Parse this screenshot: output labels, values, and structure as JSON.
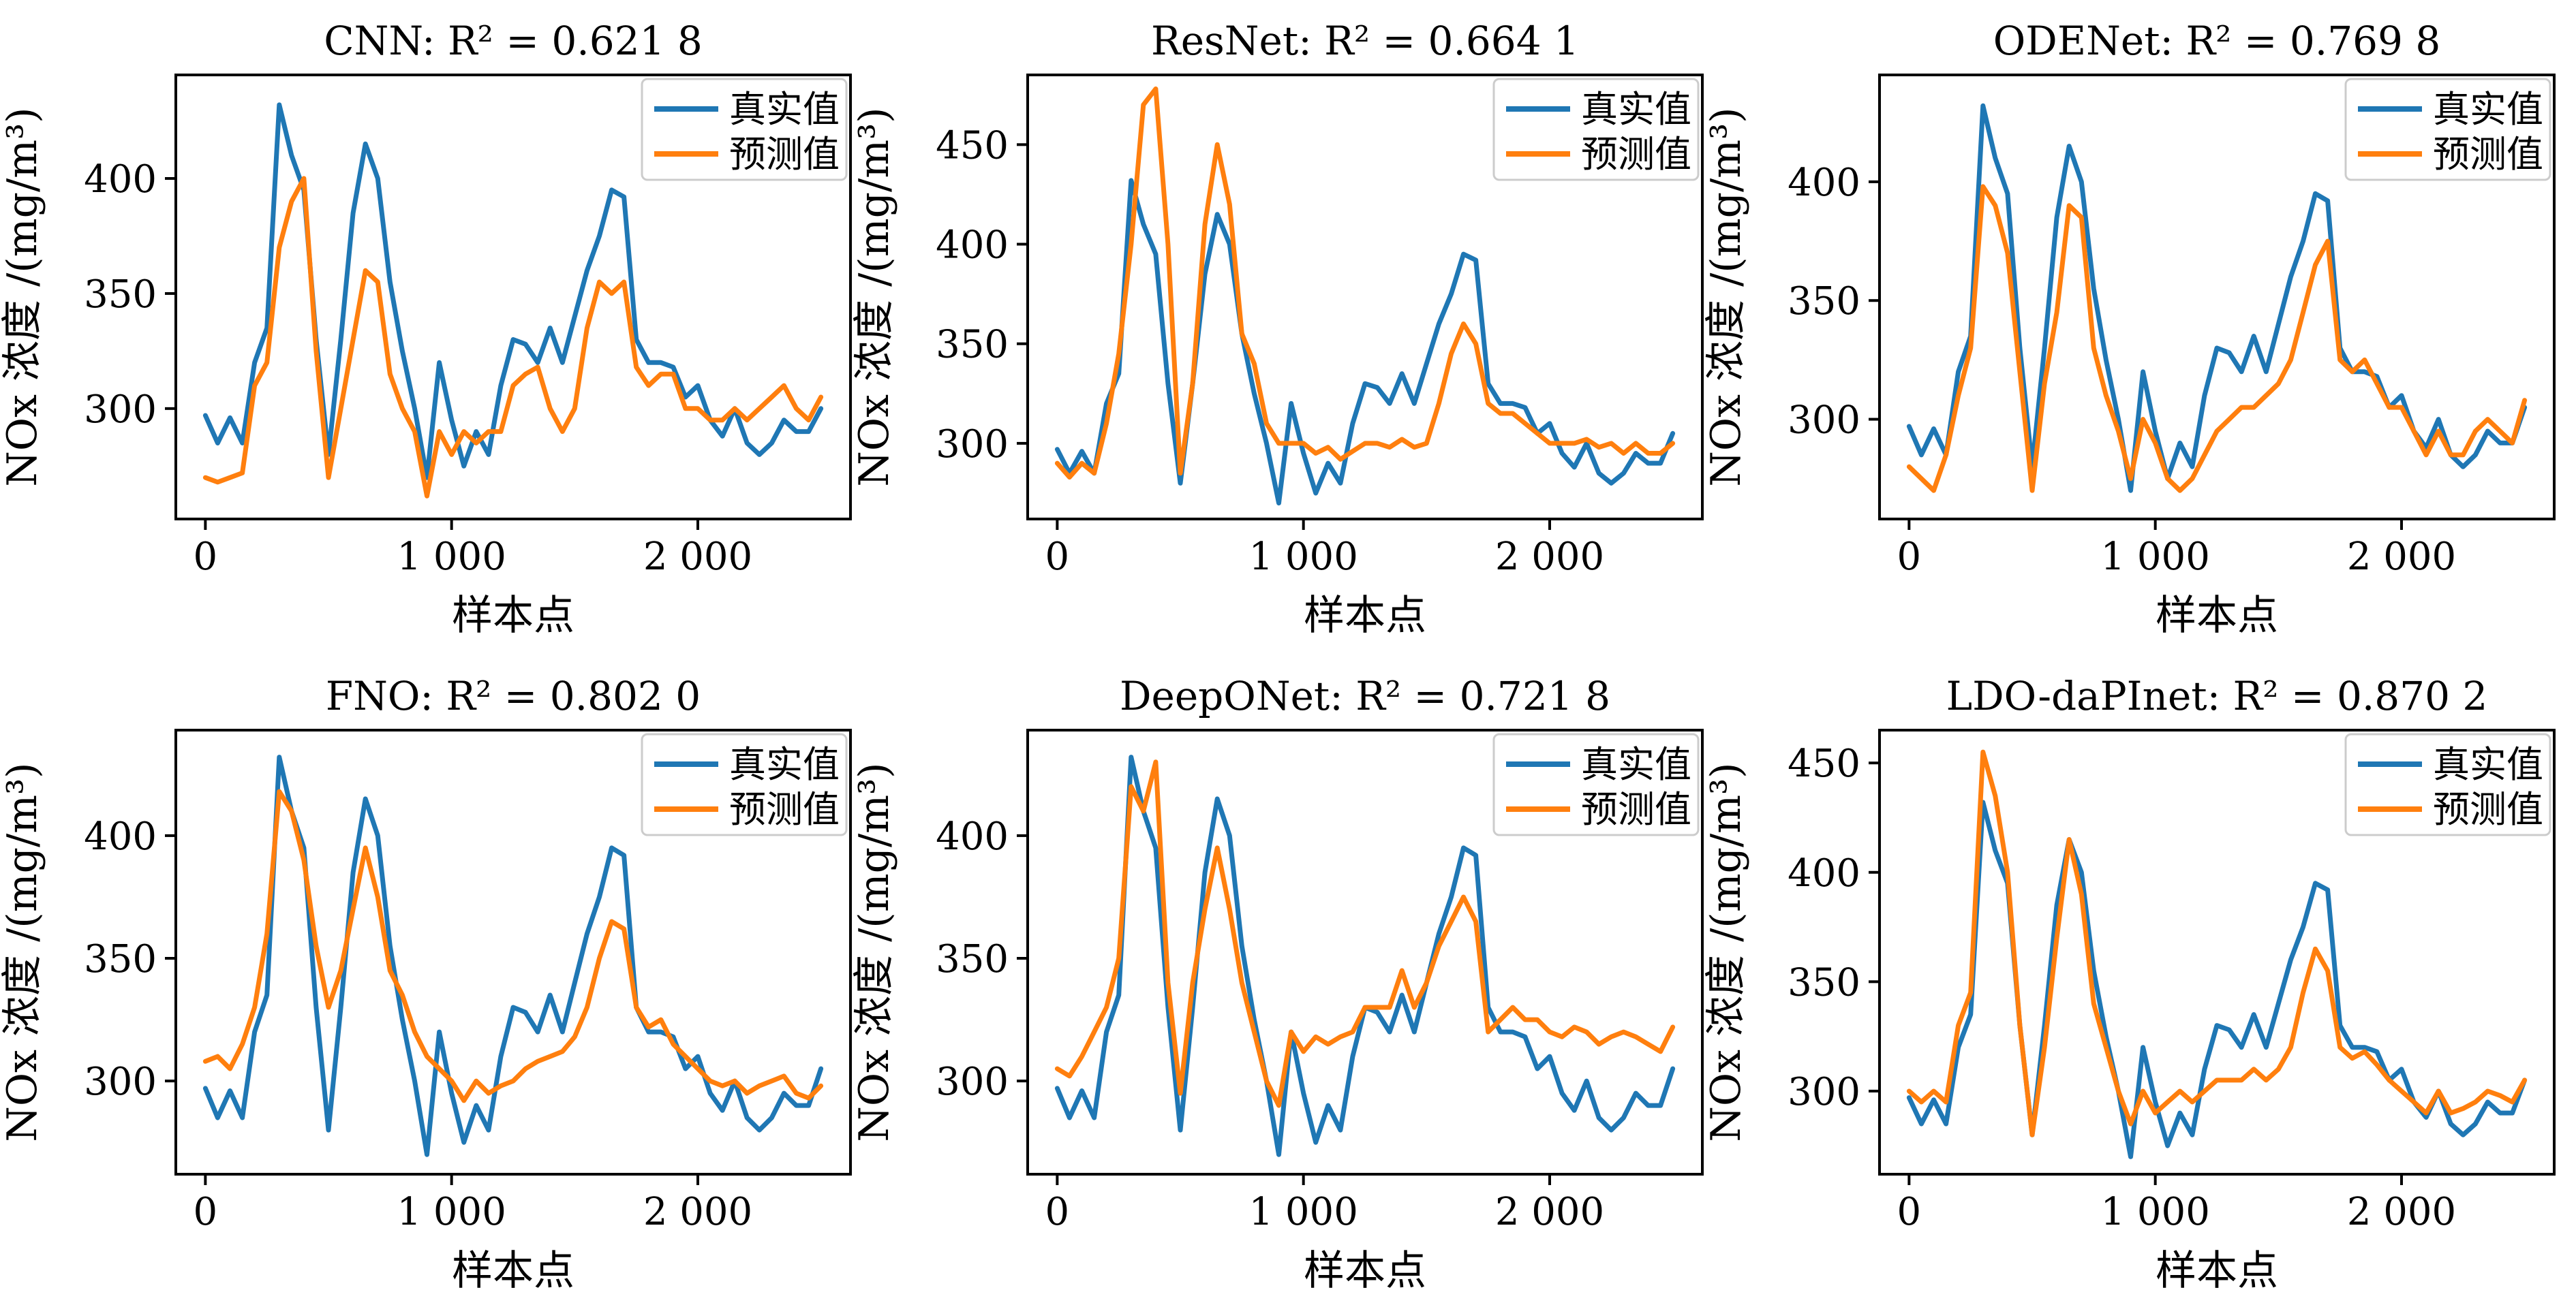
{
  "figure": {
    "legend_placement": "top-right",
    "grid": false
  },
  "series_colors": {
    "真实值": "#1f77b4",
    "预测值": "#ff7f0e"
  },
  "chart_data": [
    {
      "type": "line",
      "title": "CNN: R² = 0.621 8",
      "xlabel": "样本点",
      "ylabel": "NOx 浓度 /(mg/m³)",
      "xlim": [
        -120,
        2620
      ],
      "ylim": [
        252,
        445
      ],
      "x_ticks": [
        0,
        1000,
        2000
      ],
      "x_tick_labels": [
        "0",
        "1 000",
        "2 000"
      ],
      "y_ticks": [
        300,
        350,
        400
      ],
      "y_tick_labels": [
        "300",
        "350",
        "400"
      ],
      "legend": [
        "真实值",
        "预测值"
      ],
      "x": [
        0,
        50,
        100,
        150,
        200,
        250,
        300,
        350,
        400,
        450,
        500,
        550,
        600,
        650,
        700,
        750,
        800,
        850,
        900,
        950,
        1000,
        1050,
        1100,
        1150,
        1200,
        1250,
        1300,
        1350,
        1400,
        1450,
        1500,
        1550,
        1600,
        1650,
        1700,
        1750,
        1800,
        1850,
        1900,
        1950,
        2000,
        2050,
        2100,
        2150,
        2200,
        2250,
        2300,
        2350,
        2400,
        2450,
        2500
      ],
      "series": [
        {
          "name": "真实值",
          "values": [
            297,
            285,
            296,
            285,
            320,
            335,
            432,
            410,
            395,
            330,
            280,
            330,
            385,
            415,
            400,
            355,
            325,
            300,
            270,
            320,
            295,
            275,
            290,
            280,
            310,
            330,
            328,
            320,
            335,
            320,
            340,
            360,
            375,
            395,
            392,
            330,
            320,
            320,
            318,
            305,
            310,
            295,
            288,
            300,
            285,
            280,
            285,
            295,
            290,
            290,
            300
          ]
        },
        {
          "name": "预测值",
          "values": [
            270,
            268,
            270,
            272,
            310,
            320,
            370,
            390,
            400,
            325,
            270,
            300,
            330,
            360,
            355,
            315,
            300,
            290,
            262,
            290,
            280,
            290,
            285,
            290,
            290,
            310,
            315,
            318,
            300,
            290,
            300,
            335,
            355,
            350,
            355,
            318,
            310,
            315,
            315,
            300,
            300,
            295,
            295,
            300,
            295,
            300,
            305,
            310,
            300,
            295,
            305
          ]
        }
      ]
    },
    {
      "type": "line",
      "title": "ResNet: R² = 0.664 1",
      "xlabel": "样本点",
      "ylabel": "NOx 浓度 /(mg/m³)",
      "xlim": [
        -120,
        2620
      ],
      "ylim": [
        262,
        485
      ],
      "x_ticks": [
        0,
        1000,
        2000
      ],
      "x_tick_labels": [
        "0",
        "1 000",
        "2 000"
      ],
      "y_ticks": [
        300,
        350,
        400,
        450
      ],
      "y_tick_labels": [
        "300",
        "350",
        "400",
        "450"
      ],
      "legend": [
        "真实值",
        "预测值"
      ],
      "x": [
        0,
        50,
        100,
        150,
        200,
        250,
        300,
        350,
        400,
        450,
        500,
        550,
        600,
        650,
        700,
        750,
        800,
        850,
        900,
        950,
        1000,
        1050,
        1100,
        1150,
        1200,
        1250,
        1300,
        1350,
        1400,
        1450,
        1500,
        1550,
        1600,
        1650,
        1700,
        1750,
        1800,
        1850,
        1900,
        1950,
        2000,
        2050,
        2100,
        2150,
        2200,
        2250,
        2300,
        2350,
        2400,
        2450,
        2500
      ],
      "series": [
        {
          "name": "真实值",
          "values": [
            297,
            285,
            296,
            285,
            320,
            335,
            432,
            410,
            395,
            330,
            280,
            330,
            385,
            415,
            400,
            355,
            325,
            300,
            270,
            320,
            295,
            275,
            290,
            280,
            310,
            330,
            328,
            320,
            335,
            320,
            340,
            360,
            375,
            395,
            392,
            330,
            320,
            320,
            318,
            305,
            310,
            295,
            288,
            300,
            285,
            280,
            285,
            295,
            290,
            290,
            305
          ]
        },
        {
          "name": "预测值",
          "values": [
            290,
            283,
            290,
            285,
            310,
            345,
            400,
            470,
            478,
            400,
            285,
            330,
            410,
            450,
            420,
            355,
            340,
            310,
            300,
            300,
            300,
            295,
            298,
            292,
            296,
            300,
            300,
            298,
            302,
            298,
            300,
            320,
            345,
            360,
            350,
            320,
            315,
            315,
            310,
            305,
            300,
            300,
            300,
            302,
            298,
            300,
            295,
            300,
            295,
            295,
            300
          ]
        }
      ]
    },
    {
      "type": "line",
      "title": "ODENet: R² = 0.769 8",
      "xlabel": "样本点",
      "ylabel": "NOx 浓度 /(mg/m³)",
      "xlim": [
        -120,
        2620
      ],
      "ylim": [
        258,
        445
      ],
      "x_ticks": [
        0,
        1000,
        2000
      ],
      "x_tick_labels": [
        "0",
        "1 000",
        "2 000"
      ],
      "y_ticks": [
        300,
        350,
        400
      ],
      "y_tick_labels": [
        "300",
        "350",
        "400"
      ],
      "legend": [
        "真实值",
        "预测值"
      ],
      "x": [
        0,
        50,
        100,
        150,
        200,
        250,
        300,
        350,
        400,
        450,
        500,
        550,
        600,
        650,
        700,
        750,
        800,
        850,
        900,
        950,
        1000,
        1050,
        1100,
        1150,
        1200,
        1250,
        1300,
        1350,
        1400,
        1450,
        1500,
        1550,
        1600,
        1650,
        1700,
        1750,
        1800,
        1850,
        1900,
        1950,
        2000,
        2050,
        2100,
        2150,
        2200,
        2250,
        2300,
        2350,
        2400,
        2450,
        2500
      ],
      "series": [
        {
          "name": "真实值",
          "values": [
            297,
            285,
            296,
            285,
            320,
            335,
            432,
            410,
            395,
            330,
            280,
            330,
            385,
            415,
            400,
            355,
            325,
            300,
            270,
            320,
            295,
            275,
            290,
            280,
            310,
            330,
            328,
            320,
            335,
            320,
            340,
            360,
            375,
            395,
            392,
            330,
            320,
            320,
            318,
            305,
            310,
            295,
            288,
            300,
            285,
            280,
            285,
            295,
            290,
            290,
            305
          ]
        },
        {
          "name": "预测值",
          "values": [
            280,
            275,
            270,
            285,
            310,
            330,
            398,
            390,
            370,
            320,
            270,
            315,
            345,
            390,
            385,
            330,
            310,
            295,
            275,
            300,
            290,
            275,
            270,
            275,
            285,
            295,
            300,
            305,
            305,
            310,
            315,
            325,
            345,
            365,
            375,
            325,
            320,
            325,
            315,
            305,
            305,
            295,
            285,
            295,
            285,
            285,
            295,
            300,
            295,
            290,
            308
          ]
        }
      ]
    },
    {
      "type": "line",
      "title": "FNO: R² = 0.802 0",
      "xlabel": "样本点",
      "ylabel": "NOx 浓度 /(mg/m³)",
      "xlim": [
        -120,
        2620
      ],
      "ylim": [
        262,
        443
      ],
      "x_ticks": [
        0,
        1000,
        2000
      ],
      "x_tick_labels": [
        "0",
        "1 000",
        "2 000"
      ],
      "y_ticks": [
        300,
        350,
        400
      ],
      "y_tick_labels": [
        "300",
        "350",
        "400"
      ],
      "legend": [
        "真实值",
        "预测值"
      ],
      "x": [
        0,
        50,
        100,
        150,
        200,
        250,
        300,
        350,
        400,
        450,
        500,
        550,
        600,
        650,
        700,
        750,
        800,
        850,
        900,
        950,
        1000,
        1050,
        1100,
        1150,
        1200,
        1250,
        1300,
        1350,
        1400,
        1450,
        1500,
        1550,
        1600,
        1650,
        1700,
        1750,
        1800,
        1850,
        1900,
        1950,
        2000,
        2050,
        2100,
        2150,
        2200,
        2250,
        2300,
        2350,
        2400,
        2450,
        2500
      ],
      "series": [
        {
          "name": "真实值",
          "values": [
            297,
            285,
            296,
            285,
            320,
            335,
            432,
            410,
            395,
            330,
            280,
            330,
            385,
            415,
            400,
            355,
            325,
            300,
            270,
            320,
            295,
            275,
            290,
            280,
            310,
            330,
            328,
            320,
            335,
            320,
            340,
            360,
            375,
            395,
            392,
            330,
            320,
            320,
            318,
            305,
            310,
            295,
            288,
            300,
            285,
            280,
            285,
            295,
            290,
            290,
            305
          ]
        },
        {
          "name": "预测值",
          "values": [
            308,
            310,
            305,
            315,
            330,
            360,
            418,
            410,
            390,
            355,
            330,
            345,
            370,
            395,
            375,
            345,
            335,
            320,
            310,
            305,
            300,
            292,
            300,
            295,
            298,
            300,
            305,
            308,
            310,
            312,
            318,
            330,
            350,
            365,
            362,
            330,
            322,
            325,
            315,
            310,
            305,
            300,
            298,
            300,
            295,
            298,
            300,
            302,
            295,
            293,
            298
          ]
        }
      ]
    },
    {
      "type": "line",
      "title": "DeepONet: R² = 0.721 8",
      "xlabel": "样本点",
      "ylabel": "NOx 浓度 /(mg/m³)",
      "xlim": [
        -120,
        2620
      ],
      "ylim": [
        262,
        443
      ],
      "x_ticks": [
        0,
        1000,
        2000
      ],
      "x_tick_labels": [
        "0",
        "1 000",
        "2 000"
      ],
      "y_ticks": [
        300,
        350,
        400
      ],
      "y_tick_labels": [
        "300",
        "350",
        "400"
      ],
      "legend": [
        "真实值",
        "预测值"
      ],
      "x": [
        0,
        50,
        100,
        150,
        200,
        250,
        300,
        350,
        400,
        450,
        500,
        550,
        600,
        650,
        700,
        750,
        800,
        850,
        900,
        950,
        1000,
        1050,
        1100,
        1150,
        1200,
        1250,
        1300,
        1350,
        1400,
        1450,
        1500,
        1550,
        1600,
        1650,
        1700,
        1750,
        1800,
        1850,
        1900,
        1950,
        2000,
        2050,
        2100,
        2150,
        2200,
        2250,
        2300,
        2350,
        2400,
        2450,
        2500
      ],
      "series": [
        {
          "name": "真实值",
          "values": [
            297,
            285,
            296,
            285,
            320,
            335,
            432,
            410,
            395,
            330,
            280,
            330,
            385,
            415,
            400,
            355,
            325,
            300,
            270,
            320,
            295,
            275,
            290,
            280,
            310,
            330,
            328,
            320,
            335,
            320,
            340,
            360,
            375,
            395,
            392,
            330,
            320,
            320,
            318,
            305,
            310,
            295,
            288,
            300,
            285,
            280,
            285,
            295,
            290,
            290,
            305
          ]
        },
        {
          "name": "预测值",
          "values": [
            305,
            302,
            310,
            320,
            330,
            350,
            420,
            410,
            430,
            340,
            295,
            340,
            370,
            395,
            370,
            340,
            320,
            300,
            290,
            320,
            312,
            318,
            315,
            318,
            320,
            330,
            330,
            330,
            345,
            330,
            340,
            355,
            365,
            375,
            365,
            320,
            325,
            330,
            325,
            325,
            320,
            318,
            322,
            320,
            315,
            318,
            320,
            318,
            315,
            312,
            322
          ]
        }
      ]
    },
    {
      "type": "line",
      "title": "LDO-daPInet: R² = 0.870 2",
      "xlabel": "样本点",
      "ylabel": "NOx 浓度 /(mg/m³)",
      "xlim": [
        -120,
        2620
      ],
      "ylim": [
        262,
        465
      ],
      "x_ticks": [
        0,
        1000,
        2000
      ],
      "x_tick_labels": [
        "0",
        "1 000",
        "2 000"
      ],
      "y_ticks": [
        300,
        350,
        400,
        450
      ],
      "y_tick_labels": [
        "300",
        "350",
        "400",
        "450"
      ],
      "legend": [
        "真实值",
        "预测值"
      ],
      "x": [
        0,
        50,
        100,
        150,
        200,
        250,
        300,
        350,
        400,
        450,
        500,
        550,
        600,
        650,
        700,
        750,
        800,
        850,
        900,
        950,
        1000,
        1050,
        1100,
        1150,
        1200,
        1250,
        1300,
        1350,
        1400,
        1450,
        1500,
        1550,
        1600,
        1650,
        1700,
        1750,
        1800,
        1850,
        1900,
        1950,
        2000,
        2050,
        2100,
        2150,
        2200,
        2250,
        2300,
        2350,
        2400,
        2450,
        2500
      ],
      "series": [
        {
          "name": "真实值",
          "values": [
            297,
            285,
            296,
            285,
            320,
            335,
            432,
            410,
            395,
            330,
            280,
            330,
            385,
            415,
            400,
            355,
            325,
            300,
            270,
            320,
            295,
            275,
            290,
            280,
            310,
            330,
            328,
            320,
            335,
            320,
            340,
            360,
            375,
            395,
            392,
            330,
            320,
            320,
            318,
            305,
            310,
            295,
            288,
            300,
            285,
            280,
            285,
            295,
            290,
            290,
            305
          ]
        },
        {
          "name": "预测值",
          "values": [
            300,
            295,
            300,
            295,
            330,
            345,
            455,
            435,
            400,
            330,
            280,
            320,
            370,
            415,
            390,
            340,
            320,
            300,
            285,
            300,
            290,
            295,
            300,
            295,
            300,
            305,
            305,
            305,
            310,
            305,
            310,
            320,
            345,
            365,
            355,
            320,
            315,
            318,
            312,
            305,
            300,
            295,
            290,
            300,
            290,
            292,
            295,
            300,
            298,
            295,
            305
          ]
        }
      ]
    }
  ]
}
